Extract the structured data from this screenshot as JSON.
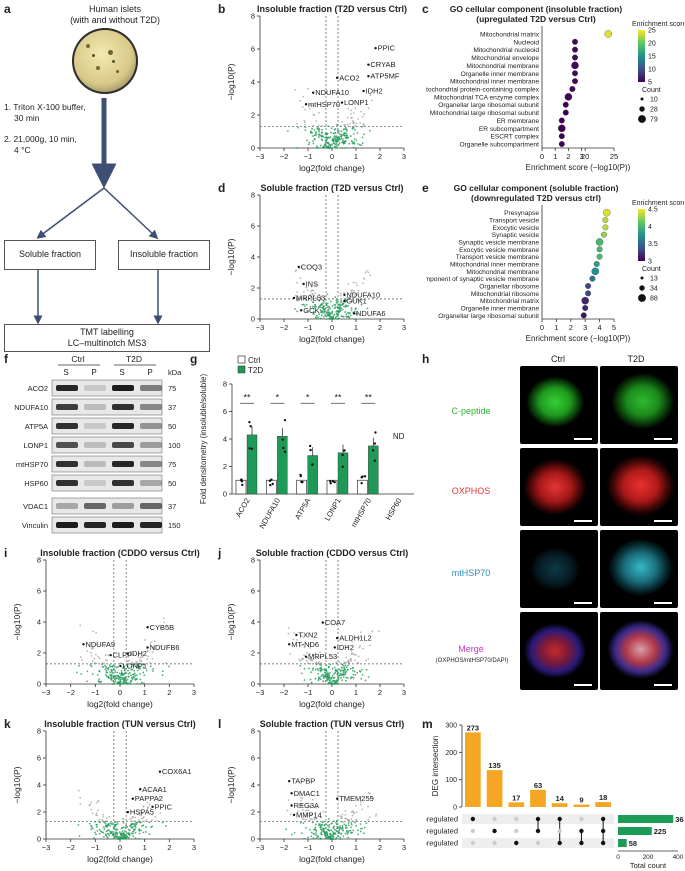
{
  "panels": {
    "a": {
      "letter": "a",
      "title_l1": "Human islets",
      "title_l2": "(with and without T2D)",
      "step1_l1": "1. Triton X-100 buffer,",
      "step1_l2": "30 min",
      "step2_l1": "2. 21,000g, 10 min,",
      "step2_l2": "4 °C",
      "soluble": "Soluble fraction",
      "insoluble": "Insoluble fraction",
      "tmt_l1": "TMT labelling",
      "tmt_l2": "LC–multinotch MS3"
    },
    "b": {
      "letter": "b",
      "title": "Insoluble fraction (T2D versus Ctrl)",
      "labels": [
        "PPIC",
        "CRYAB",
        "ACO2",
        "ATP5MF",
        "IDH2",
        "NDUFA10",
        "mtHSP70",
        "LONP1"
      ]
    },
    "c": {
      "letter": "c",
      "title_l1": "GO cellular component (insoluble fraction)",
      "title_l2": "(upregulated T2D versus Ctrl)",
      "terms": [
        "Mitochondrial matrix",
        "Nucleoid",
        "Mitochondrial nucleoid",
        "Mitochondrial envelope",
        "Mitochondrial membrane",
        "Organelle inner membrane",
        "Mitochondrial inner membrane",
        "Mitochondrial protein-containing complex",
        "Mitochondrial TCA enzyme complex",
        "Organellar large ribosomal subunit",
        "Mitochondrial large ribosomal subunit",
        "ER membrane",
        "ER subcompartment",
        "ESCRT complex",
        "Organelle subcompartment"
      ],
      "scores": [
        24,
        2.5,
        2.5,
        2.5,
        2.5,
        2.5,
        2.5,
        2.3,
        2.0,
        1.8,
        1.8,
        1.5,
        1.5,
        1.5,
        1.5
      ],
      "ticks": [
        "0",
        "1",
        "2",
        "3",
        "20",
        "25"
      ],
      "xlabel": "Enrichment score (−log10(P))",
      "legend_title": "Enrichment score",
      "legend_ticks": [
        "25",
        "20",
        "15",
        "10",
        "5"
      ],
      "count_title": "Count",
      "count_vals": [
        "10",
        "28",
        "79"
      ]
    },
    "d": {
      "letter": "d",
      "title": "Soluble fraction (T2D versus Ctrl)",
      "labels": [
        "COQ3",
        "INS",
        "NDUFA10",
        "MRPL53",
        "GUK1",
        "GCK",
        "NDUFA6"
      ]
    },
    "e": {
      "letter": "e",
      "title_l1": "GO cellular component (soluble fraction)",
      "title_l2": "(downregulated T2D versus ctrl)",
      "terms": [
        "Presynapse",
        "Transport vesicle",
        "Exocytic vesicle",
        "Synaptic vesicle",
        "Synaptic vesicle membrane",
        "Exocytic vesicle membrane",
        "Transport vesicle membrane",
        "Mitochondrial inner membrane",
        "Mitochondrial membrane",
        "Intrinsic component of synaptic vesicle membrane",
        "Organellar ribosome",
        "Mitochondrial ribosome",
        "Mitochondrial matrix",
        "Organelle inner membrane",
        "Organellar large ribosomal subunit"
      ],
      "scores": [
        4.5,
        4.4,
        4.4,
        4.3,
        4.0,
        4.0,
        4.0,
        3.8,
        3.7,
        3.5,
        3.2,
        3.2,
        3.0,
        3.0,
        2.9
      ],
      "ticks": [
        "0",
        "1",
        "2",
        "3",
        "4",
        "5"
      ],
      "xlabel": "Enrichment score (−log10(P))",
      "legend_title": "Enrichment score",
      "legend_ticks": [
        "4.5",
        "4",
        "3.5",
        "3"
      ],
      "count_title": "Count",
      "count_vals": [
        "13",
        "34",
        "88"
      ]
    },
    "f": {
      "letter": "f",
      "ctrl": "Ctrl",
      "t2d": "T2D",
      "s": "S",
      "p": "P",
      "kda": "kDa",
      "proteins": [
        "ACO2",
        "NDUFA10",
        "ATP5A",
        "LONP1",
        "mtHSP70",
        "HSP60",
        "VDAC1",
        "Vinculin"
      ],
      "sizes": [
        "75",
        "37",
        "50",
        "100",
        "75",
        "50",
        "37",
        "150"
      ]
    },
    "g": {
      "letter": "g",
      "legend": [
        "Ctrl",
        "T2D"
      ],
      "ylabel": "Fold densitometry (insoluble/soluble)",
      "categories": [
        "ACO2",
        "NDUFA10",
        "ATP5A",
        "LONP1",
        "mtHSP70",
        "HSP60"
      ],
      "ctrl": [
        1.0,
        1.0,
        1.0,
        1.0,
        1.0,
        0
      ],
      "t2d": [
        4.3,
        4.2,
        2.8,
        3.0,
        3.5,
        0
      ],
      "sig": [
        "**",
        "*",
        "*",
        "**",
        "**",
        ""
      ],
      "nd": "ND",
      "yticks": [
        "0",
        "2",
        "4",
        "6",
        "8"
      ]
    },
    "h": {
      "letter": "h",
      "ctrl": "Ctrl",
      "t2d": "T2D",
      "rows": [
        "C-peptide",
        "OXPHOS",
        "mtHSP70",
        "Merge"
      ],
      "merge_sub": "(OXPHOS/mtHSP70/DAPI)"
    },
    "i": {
      "letter": "i",
      "title": "Insoluble fraction (CDDO versus Ctrl)",
      "labels": [
        "CYB5B",
        "NDUFA9",
        "NDUFB6",
        "IDH2",
        "CLPP",
        "LONP1"
      ]
    },
    "j": {
      "letter": "j",
      "title": "Soluble fraction (CDDO versus Ctrl)",
      "labels": [
        "COA7",
        "TXN2",
        "ALDH1L2",
        "MT-ND6",
        "IDH2",
        "MRPL53"
      ]
    },
    "k": {
      "letter": "k",
      "title": "Insoluble fraction (TUN versus Ctrl)",
      "labels": [
        "COX6A1",
        "ACAA1",
        "PAPPA2",
        "PPIC",
        "HSPA5"
      ]
    },
    "l": {
      "letter": "l",
      "title": "Soluble fraction (TUN versus Ctrl)",
      "labels": [
        "TAPBP",
        "DMAC1",
        "TMEM259",
        "REG3A",
        "MMP14"
      ]
    },
    "m": {
      "letter": "m",
      "ylabel": "DEG intersection",
      "bars": [
        273,
        135,
        17,
        63,
        14,
        9,
        18
      ],
      "yticks": [
        "0",
        "100",
        "200",
        "300"
      ],
      "sets": [
        "T2D upregulated",
        "CDDO upregulated",
        "TUN upregulated"
      ],
      "set_sizes": [
        368,
        225,
        58
      ],
      "total_label": "Total count",
      "total_ticks": [
        "0",
        "200",
        "400"
      ]
    },
    "volcano": {
      "xlabel": "log2(fold change)",
      "ylabel": "−log10(P)",
      "xticks": [
        "−3",
        "−2",
        "−1",
        "0",
        "1",
        "2",
        "3"
      ],
      "yticks": [
        "0",
        "2",
        "4",
        "6",
        "8"
      ]
    }
  },
  "colors": {
    "green": "#1e9a57",
    "orange": "#f5a623",
    "gray": "#a6a6a6"
  }
}
